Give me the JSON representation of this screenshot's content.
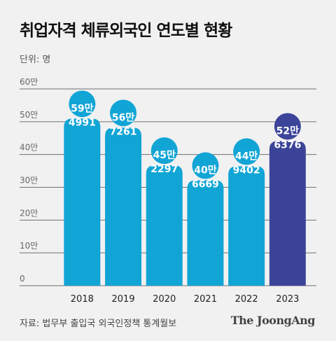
{
  "header": {
    "title": "취업자격 체류외국인 연도별 현황",
    "unit": "단위: 명"
  },
  "footer": {
    "source": "자료: 법무부 출입국 외국인정책 통계월보",
    "brand": "The JoongAng"
  },
  "colors": {
    "bar": "#11a5d6",
    "highlight": "#3c4499",
    "grid": "#6f6f6f",
    "axis_text": "#666666",
    "label_text": "#ffffff"
  },
  "chart_data": {
    "type": "bar",
    "categories": [
      "2018",
      "2019",
      "2020",
      "2021",
      "2022",
      "2023"
    ],
    "values": [
      594991,
      567261,
      452297,
      406669,
      449402,
      526376
    ],
    "value_labels": [
      [
        "59만",
        "4991"
      ],
      [
        "56만",
        "7261"
      ],
      [
        "45만",
        "2297"
      ],
      [
        "40만",
        "6669"
      ],
      [
        "44만",
        "9402"
      ],
      [
        "52만",
        "6376"
      ]
    ],
    "highlight_index": 5,
    "y_ticks": [
      {
        "value": 0,
        "label": "0"
      },
      {
        "value": 100000,
        "label": "10만"
      },
      {
        "value": 200000,
        "label": "20만"
      },
      {
        "value": 300000,
        "label": "30만"
      },
      {
        "value": 400000,
        "label": "40만"
      },
      {
        "value": 500000,
        "label": "50만"
      },
      {
        "value": 600000,
        "label": "60만"
      }
    ],
    "ylim": [
      0,
      600000
    ],
    "grid": true,
    "style": "pictogram-person"
  }
}
